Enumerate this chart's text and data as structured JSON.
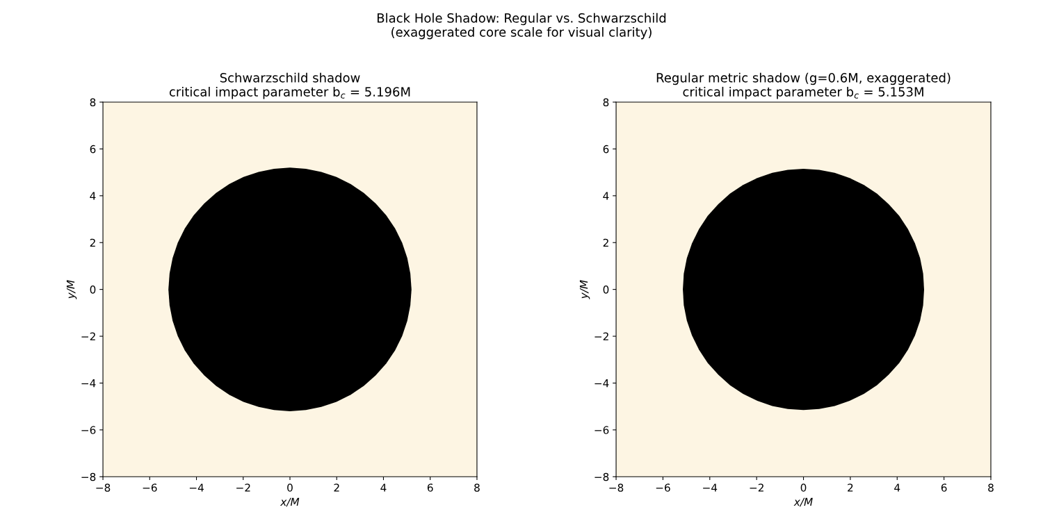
{
  "chart_data": [
    {
      "type": "area",
      "title": "Schwarzschild shadow\ncritical impact parameter b$_{c}$ = 5.196M",
      "xlabel": "x/M",
      "ylabel": "y/M",
      "annotations": [
        "Black Hole Shadow: Regular vs. Schwarzschild\n(exaggerated core scale for visual clarity)"
      ],
      "xlim": [
        -8,
        8
      ],
      "ylim": [
        -8,
        8
      ],
      "xticks": [
        -8,
        -6,
        -4,
        -2,
        0,
        2,
        4,
        6,
        8
      ],
      "yticks": [
        -8,
        -6,
        -4,
        -2,
        0,
        2,
        4,
        6,
        8
      ],
      "grid": false,
      "series": [
        {
          "color": "#000000",
          "x": [
            5.2,
            5.15,
            5.02,
            4.8,
            4.5,
            4.12,
            3.67,
            3.16,
            2.6,
            1.99,
            1.34,
            0.68,
            0,
            -0.68,
            -1.34,
            -1.99,
            -2.6,
            -3.16,
            -3.67,
            -4.12,
            -4.5,
            -4.8,
            -5.02,
            -5.15,
            -5.2,
            -5.15,
            -5.02,
            -4.8,
            -4.5,
            -4.12,
            -3.67,
            -3.16,
            -2.6,
            -1.99,
            -1.34,
            -0.68,
            0,
            0.68,
            1.34,
            1.99,
            2.6,
            3.16,
            3.67,
            4.12,
            4.5,
            4.8,
            5.02,
            5.15
          ],
          "values": [
            0,
            0.68,
            1.34,
            1.99,
            2.6,
            3.16,
            3.67,
            4.12,
            4.5,
            4.8,
            5.02,
            5.15,
            5.2,
            5.15,
            5.02,
            4.8,
            4.5,
            4.12,
            3.67,
            3.16,
            2.6,
            1.99,
            1.34,
            0.68,
            0,
            -0.68,
            -1.34,
            -1.99,
            -2.6,
            -3.16,
            -3.67,
            -4.12,
            -4.5,
            -4.8,
            -5.02,
            -5.15,
            -5.2,
            -5.15,
            -5.02,
            -4.8,
            -4.5,
            -4.12,
            -3.67,
            -3.16,
            -2.6,
            -1.99,
            -1.34,
            -0.68
          ]
        }
      ]
    },
    {
      "type": "area",
      "title": "Regular metric shadow (g=0.6M, exaggerated)\ncritical impact parameter b$_{c}$ = 5.153M",
      "xlabel": "x/M",
      "ylabel": "y/M",
      "xlim": [
        -8,
        8
      ],
      "ylim": [
        -8,
        8
      ],
      "xticks": [
        -8,
        -6,
        -4,
        -2,
        0,
        2,
        4,
        6,
        8
      ],
      "yticks": [
        -8,
        -6,
        -4,
        -2,
        0,
        2,
        4,
        6,
        8
      ],
      "grid": false,
      "series": [
        {
          "color": "#000000",
          "x": [
            5.15,
            5.11,
            4.98,
            4.76,
            4.46,
            4.09,
            3.64,
            3.14,
            2.58,
            1.97,
            1.33,
            0.67,
            0,
            -0.67,
            -1.33,
            -1.97,
            -2.58,
            -3.14,
            -3.64,
            -4.09,
            -4.46,
            -4.76,
            -4.98,
            -5.11,
            -5.15,
            -5.11,
            -4.98,
            -4.76,
            -4.46,
            -4.09,
            -3.64,
            -3.14,
            -2.58,
            -1.97,
            -1.33,
            -0.67,
            0,
            0.67,
            1.33,
            1.97,
            2.58,
            3.14,
            3.64,
            4.09,
            4.46,
            4.76,
            4.98,
            5.11
          ],
          "values": [
            0,
            0.67,
            1.33,
            1.97,
            2.58,
            3.14,
            3.64,
            4.09,
            4.46,
            4.76,
            4.98,
            5.11,
            5.15,
            5.11,
            4.98,
            4.76,
            4.46,
            4.09,
            3.64,
            3.14,
            2.58,
            1.97,
            1.33,
            0.67,
            0,
            -0.67,
            -1.33,
            -1.97,
            -2.58,
            -3.14,
            -3.64,
            -4.09,
            -4.46,
            -4.76,
            -4.98,
            -5.11,
            -5.15,
            -5.11,
            -4.98,
            -4.76,
            -4.46,
            -4.09,
            -3.64,
            -3.14,
            -2.58,
            -1.97,
            -1.33,
            -0.67
          ]
        }
      ]
    }
  ]
}
